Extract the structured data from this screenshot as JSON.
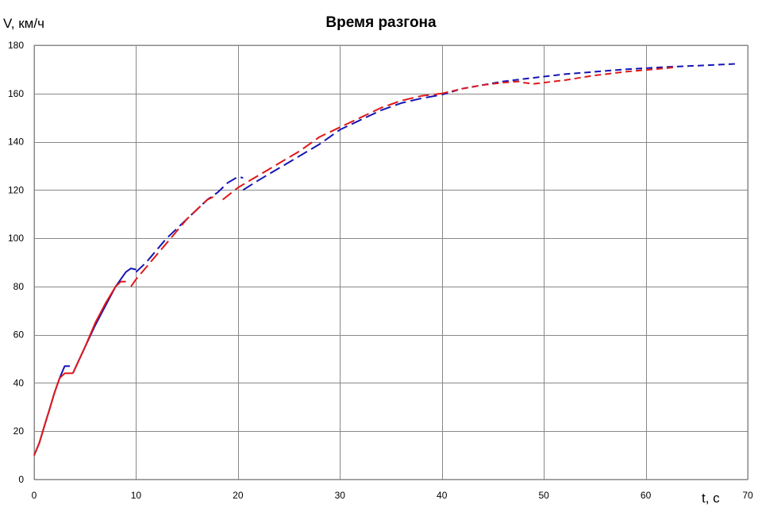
{
  "chart_data": {
    "type": "line",
    "title": "Время разгона",
    "xlabel": "t, с",
    "ylabel": "V, км/ч",
    "xlim": [
      0,
      70
    ],
    "ylim": [
      0,
      180
    ],
    "x_ticks": [
      0,
      10,
      20,
      30,
      40,
      50,
      60,
      70
    ],
    "y_ticks": [
      0,
      20,
      40,
      60,
      80,
      100,
      120,
      140,
      160,
      180
    ],
    "grid": true,
    "legend": "none",
    "series": [
      {
        "color": "#1515b5",
        "segments": [
          {
            "dash": "solid",
            "points": [
              [
                0,
                10
              ],
              [
                0.5,
                15
              ],
              [
                1,
                22
              ],
              [
                1.5,
                29
              ],
              [
                2,
                36
              ],
              [
                2.5,
                42
              ],
              [
                3,
                47
              ],
              [
                3.5,
                47
              ]
            ]
          },
          {
            "dash": "solid",
            "points": [
              [
                3.8,
                44
              ],
              [
                5,
                55
              ],
              [
                6,
                64
              ],
              [
                7,
                72
              ],
              [
                8,
                80
              ],
              [
                9,
                86
              ],
              [
                9.5,
                87.5
              ],
              [
                10,
                87
              ]
            ]
          },
          {
            "dash": "long-dash",
            "points": [
              [
                10,
                86
              ],
              [
                11,
                90
              ],
              [
                12,
                95
              ],
              [
                13,
                100
              ],
              [
                14,
                104
              ],
              [
                15,
                108
              ],
              [
                16,
                112
              ],
              [
                17,
                116
              ],
              [
                18,
                119
              ],
              [
                19,
                123
              ],
              [
                20,
                125.5
              ],
              [
                20.5,
                125
              ]
            ]
          },
          {
            "dash": "long-dash",
            "points": [
              [
                20.5,
                120
              ],
              [
                22,
                124
              ],
              [
                24,
                129
              ],
              [
                26,
                134
              ],
              [
                28,
                139
              ],
              [
                30,
                145
              ],
              [
                32,
                149
              ],
              [
                34,
                153
              ],
              [
                36,
                156
              ],
              [
                38,
                158
              ],
              [
                40,
                159.5
              ]
            ]
          },
          {
            "dash": "short-dash",
            "points": [
              [
                40,
                159.5
              ],
              [
                42,
                162
              ],
              [
                44,
                163.5
              ],
              [
                46,
                165
              ],
              [
                48,
                166
              ],
              [
                50,
                167
              ],
              [
                52,
                168
              ],
              [
                55,
                169
              ],
              [
                58,
                170
              ],
              [
                62,
                171
              ],
              [
                66,
                171.7
              ],
              [
                69,
                172.3
              ]
            ]
          }
        ]
      },
      {
        "color": "#e01818",
        "segments": [
          {
            "dash": "solid",
            "points": [
              [
                0,
                10
              ],
              [
                0.5,
                15
              ],
              [
                1,
                22
              ],
              [
                1.5,
                29
              ],
              [
                2,
                36
              ],
              [
                2.5,
                42
              ],
              [
                3,
                44
              ],
              [
                3.8,
                44
              ]
            ]
          },
          {
            "dash": "solid",
            "points": [
              [
                3.8,
                44
              ],
              [
                5,
                55
              ],
              [
                6,
                65
              ],
              [
                7,
                73
              ],
              [
                8,
                80
              ],
              [
                8.5,
                82
              ],
              [
                9,
                82
              ]
            ]
          },
          {
            "dash": "long-dash",
            "points": [
              [
                9.5,
                80
              ],
              [
                10,
                83
              ],
              [
                11,
                88
              ],
              [
                12,
                93
              ],
              [
                13,
                98
              ],
              [
                14,
                103
              ],
              [
                15,
                108
              ],
              [
                16,
                112
              ],
              [
                17,
                116
              ],
              [
                18,
                118
              ]
            ]
          },
          {
            "dash": "long-dash",
            "points": [
              [
                18.5,
                116
              ],
              [
                20,
                121
              ],
              [
                22,
                126
              ],
              [
                24,
                131
              ],
              [
                26,
                136
              ],
              [
                28,
                142
              ],
              [
                30,
                146
              ],
              [
                32,
                150
              ],
              [
                34,
                154
              ],
              [
                36,
                157
              ],
              [
                38,
                159
              ],
              [
                40,
                160
              ]
            ]
          },
          {
            "dash": "short-dash",
            "points": [
              [
                40,
                160
              ],
              [
                42,
                162
              ],
              [
                44,
                163.5
              ],
              [
                46,
                164.5
              ],
              [
                47.5,
                165
              ],
              [
                48,
                164.5
              ],
              [
                49,
                164
              ],
              [
                52,
                165.5
              ],
              [
                55,
                167.5
              ],
              [
                58,
                169
              ],
              [
                62,
                170.5
              ],
              [
                63,
                171
              ]
            ]
          }
        ]
      }
    ]
  }
}
